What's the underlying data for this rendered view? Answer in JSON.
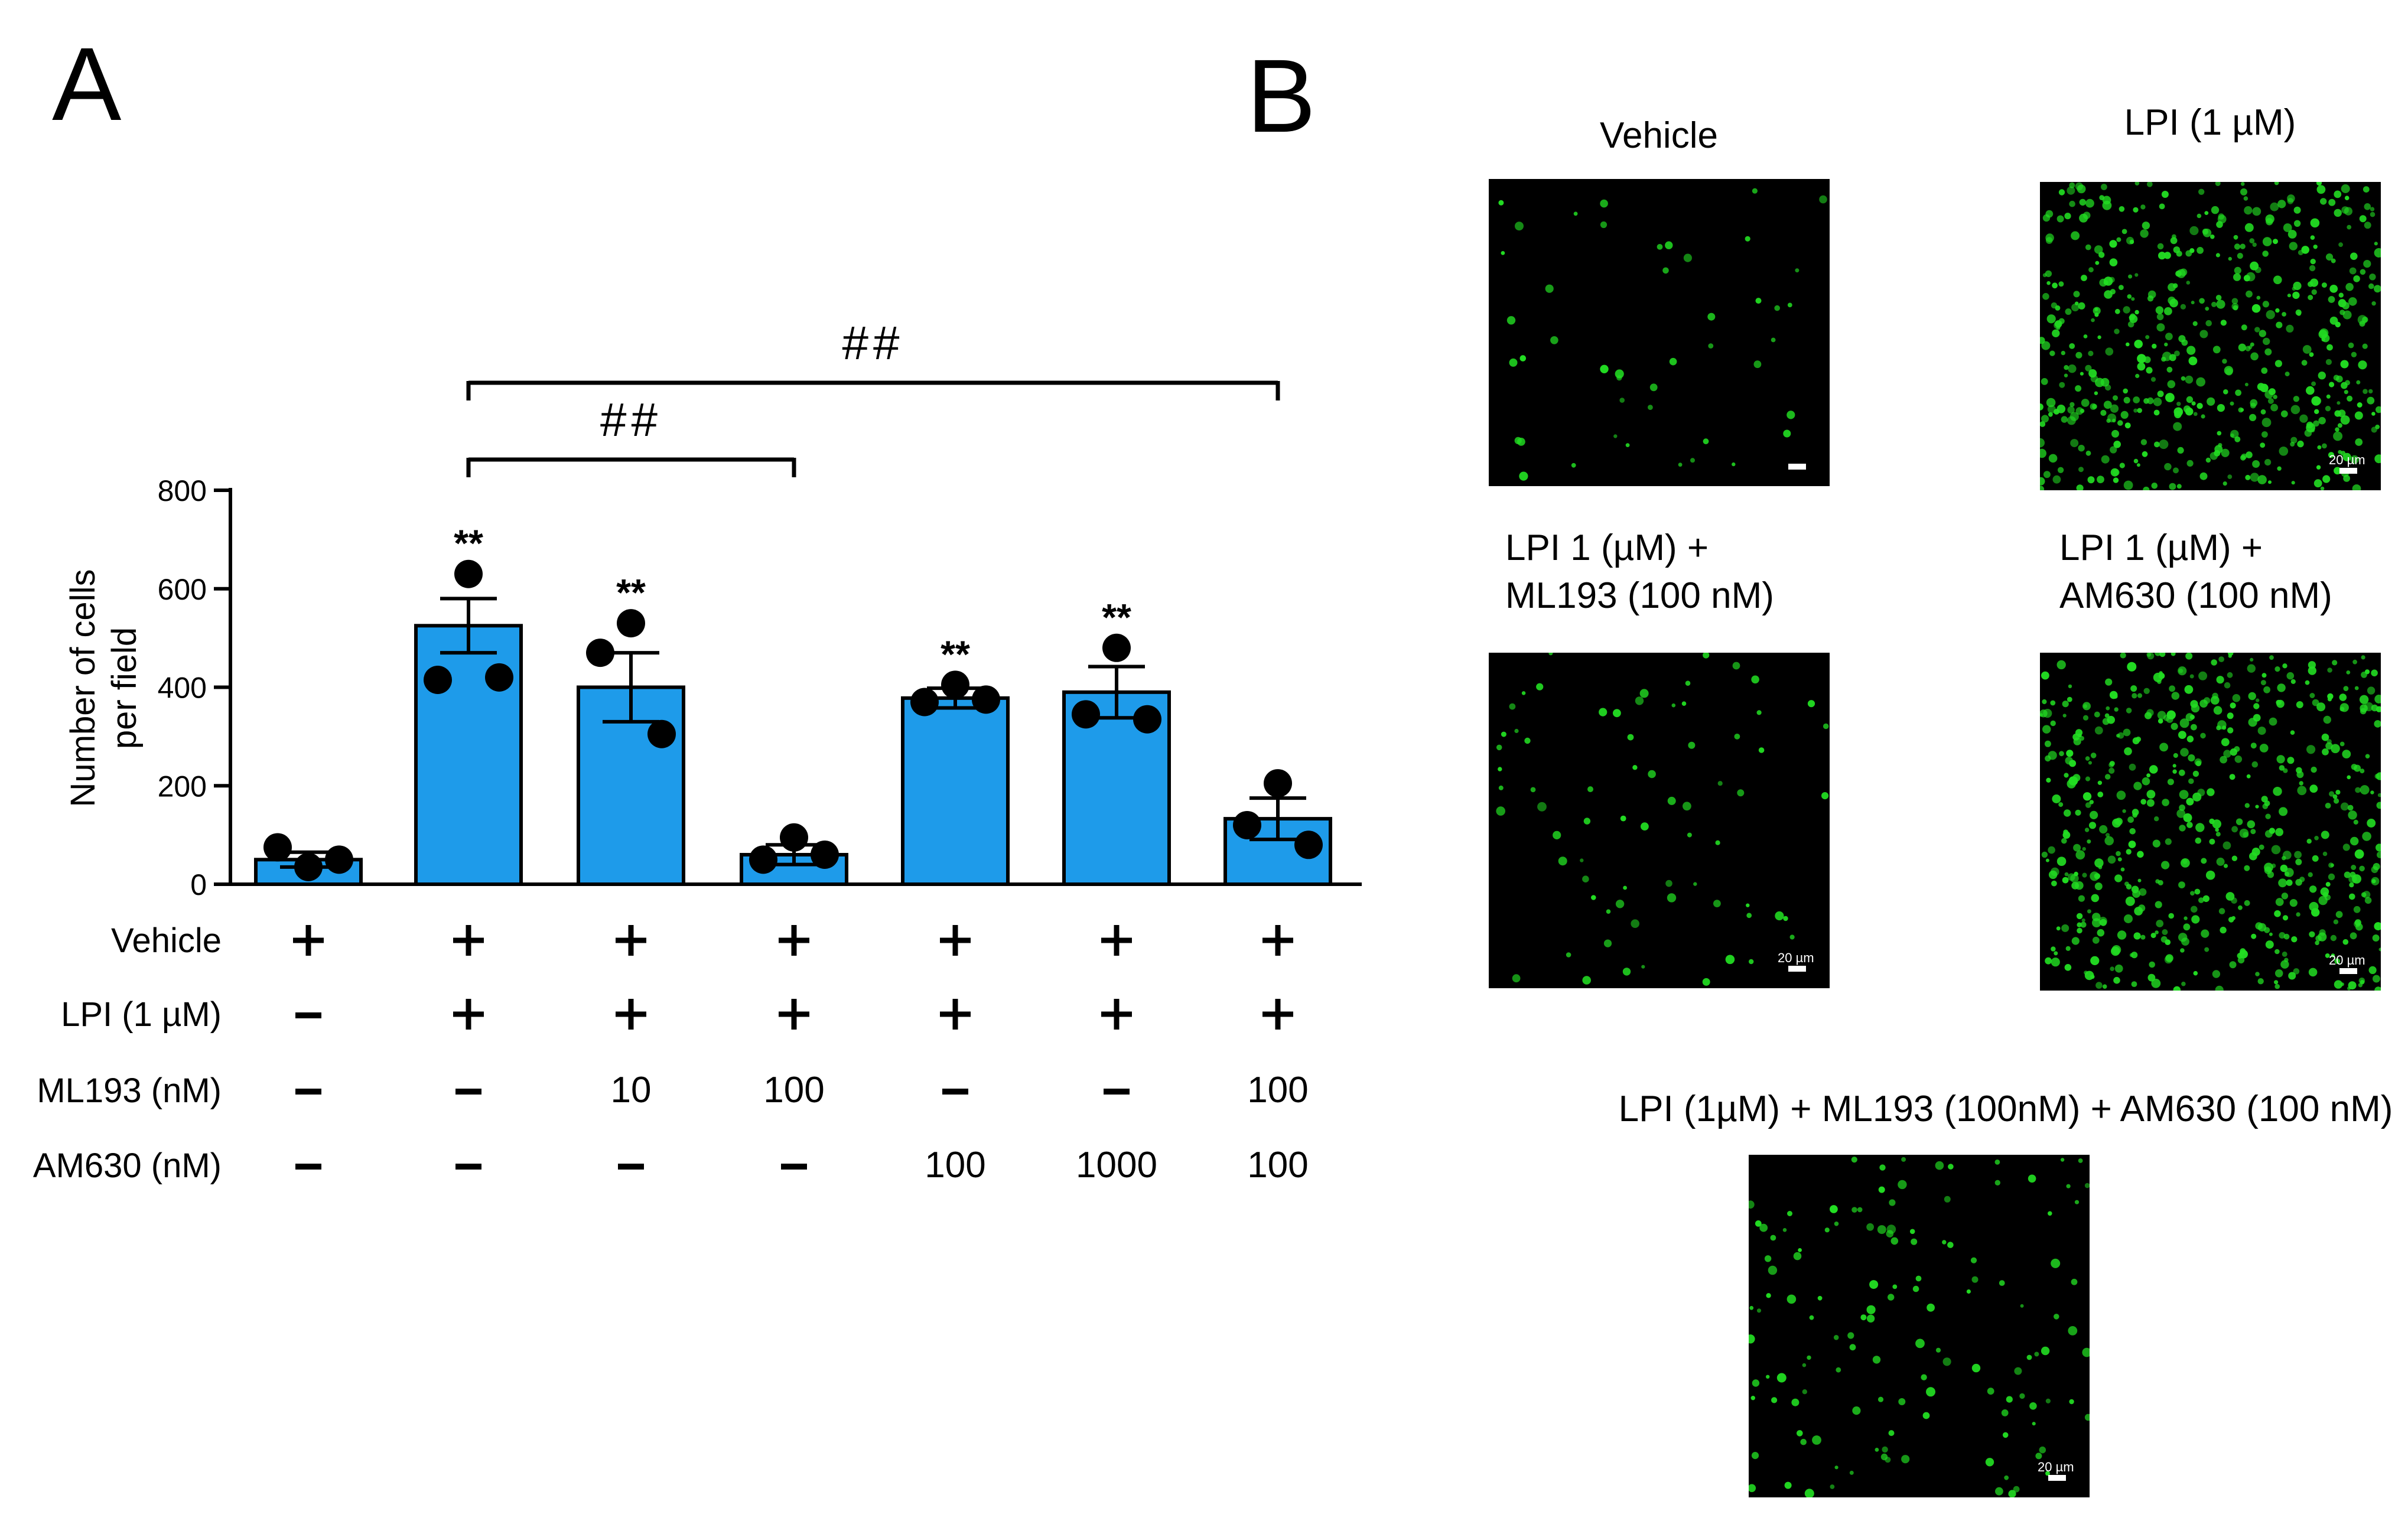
{
  "panel_a": {
    "letter": "A"
  },
  "panel_b": {
    "letter": "B",
    "images": [
      {
        "caption_lines": [
          "Vehicle"
        ],
        "scale_label": "",
        "density": 45,
        "seed": 11
      },
      {
        "caption_lines": [
          "LPI (1 µM)"
        ],
        "scale_label": "20 µm",
        "density": 520,
        "seed": 23
      },
      {
        "caption_lines": [
          "LPI 1 (µM) +",
          "ML193 (100 nM)"
        ],
        "scale_label": "20 µm",
        "density": 70,
        "seed": 37
      },
      {
        "caption_lines": [
          "LPI 1 (µM) +",
          "AM630 (100 nM)"
        ],
        "scale_label": "20 µm",
        "density": 560,
        "seed": 41
      },
      {
        "caption_lines": [
          "LPI (1µM) + ML193 (100nM) + AM630 (100 nM)"
        ],
        "scale_label": "20 µm",
        "density": 130,
        "seed": 53
      }
    ]
  },
  "colors": {
    "bar": "#1e9bea",
    "micro_bg": "#000000",
    "cell": "#22dd22"
  },
  "chart_data": {
    "type": "bar",
    "ylabel_lines": [
      "Number of cells",
      "per field"
    ],
    "ylim": [
      0,
      800
    ],
    "yticks": [
      0,
      200,
      400,
      600,
      800
    ],
    "values": [
      50,
      525,
      400,
      60,
      378,
      390,
      133
    ],
    "sem": [
      15,
      55,
      70,
      20,
      20,
      52,
      42
    ],
    "points": [
      [
        35,
        75,
        50
      ],
      [
        630,
        415,
        420
      ],
      [
        530,
        470,
        305
      ],
      [
        95,
        50,
        60
      ],
      [
        405,
        370,
        375
      ],
      [
        480,
        345,
        335
      ],
      [
        205,
        120,
        80
      ]
    ],
    "annotations": [
      "",
      "**",
      "**",
      "",
      "**",
      "**",
      ""
    ],
    "treatment_rows": [
      {
        "label": "Vehicle",
        "values": [
          "+",
          "+",
          "+",
          "+",
          "+",
          "+",
          "+"
        ]
      },
      {
        "label": "LPI (1 µM)",
        "values": [
          "-",
          "+",
          "+",
          "+",
          "+",
          "+",
          "+"
        ]
      },
      {
        "label": "ML193 (nM)",
        "values": [
          "-",
          "-",
          "10",
          "100",
          "-",
          "-",
          "100"
        ]
      },
      {
        "label": "AM630 (nM)",
        "values": [
          "-",
          "-",
          "-",
          "-",
          "100",
          "1000",
          "100"
        ]
      }
    ],
    "brackets": [
      {
        "from": 1,
        "to": 3,
        "label": "##"
      },
      {
        "from": 1,
        "to": 6,
        "label": "##"
      }
    ]
  }
}
